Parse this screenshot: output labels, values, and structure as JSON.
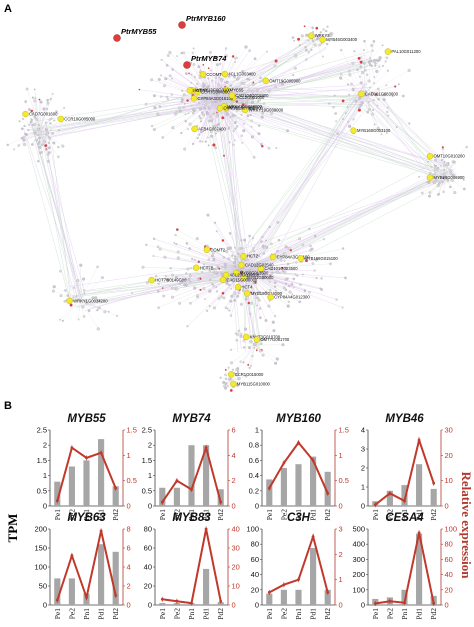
{
  "figure": {
    "panel_a_label": "A",
    "panel_b_label": "B",
    "left_axis_label": "TPM",
    "right_axis_label": "Relative expression"
  },
  "network": {
    "highlight_labels": [
      "PtrMYB160",
      "PtrMYB55",
      "PtrMYB74"
    ],
    "node_labels": [
      "MYB170G000400",
      "CAD101G023500",
      "CAD101G083600",
      "ACL2G001000",
      "MYB1G00000",
      "KNAT3G010700",
      "AFB4G007400",
      "MYB18G014000",
      "CCR10G005000",
      "MYB55",
      "HCT7B",
      "WRKY2",
      "WRKY19G039000",
      "HCT2",
      "CCR1G015000",
      "CYP84A3G016100",
      "HCT4",
      "MYB28G006900",
      "WRKY30G028800",
      "CYP84A3G01100",
      "PAL10G011200",
      "CAD104G016800",
      "CYP84A4G012300",
      "WRKY1G0034200",
      "CCOMT3",
      "MYB168G015100",
      "MYB160G003100",
      "4CL1G003400",
      "MYB6G013500",
      "OMT7G081700",
      "CCR7G004000",
      "HCT7G0149G00",
      "CAD7G001600",
      "OMT10G007000",
      "COMT2",
      "MYB46G003400",
      "WRKY13G0G0100",
      "CAD15G000000",
      "MYB115G010000",
      "OMT19G005900",
      "4CL20G004000",
      "OMT10G010200",
      "HCT7D",
      "CAD12G02540"
    ]
  },
  "chart_data": [
    {
      "type": "bar+line",
      "title": "MYB55",
      "categories": [
        "Pe1",
        "Pe2",
        "Pn1",
        "Pd1",
        "Pd2"
      ],
      "series": [
        {
          "axis": "left",
          "kind": "bar",
          "values": [
            0.8,
            1.3,
            1.5,
            2.2,
            0.65
          ]
        },
        {
          "axis": "right",
          "kind": "line",
          "values": [
            0.1,
            1.15,
            0.95,
            1.05,
            0.35
          ]
        }
      ],
      "left_ticks": [
        "0",
        "0.5",
        "1",
        "1.5",
        "2",
        "2.5"
      ],
      "left_lim": [
        0,
        2.5
      ],
      "right_ticks": [
        "0",
        "0.5",
        "1",
        "1.5"
      ],
      "right_lim": [
        0,
        1.5
      ]
    },
    {
      "type": "bar+line",
      "title": "MYB74",
      "categories": [
        "Pe1",
        "Pe2",
        "Pn1",
        "Pd1",
        "Pd2"
      ],
      "series": [
        {
          "axis": "left",
          "kind": "bar",
          "values": [
            0.6,
            0.6,
            2.0,
            2.0,
            0.55
          ]
        },
        {
          "axis": "right",
          "kind": "line",
          "values": [
            0.3,
            2.0,
            1.3,
            4.6,
            0.3
          ]
        }
      ],
      "left_ticks": [
        "0",
        "0.5",
        "1",
        "1.5",
        "2",
        "2.5"
      ],
      "left_lim": [
        0,
        2.5
      ],
      "right_ticks": [
        "0",
        "2",
        "4",
        "6"
      ],
      "right_lim": [
        0,
        6
      ]
    },
    {
      "type": "bar+line",
      "title": "MYB160",
      "categories": [
        "Pe1",
        "Pe2",
        "Pn1",
        "Pd1",
        "Pd2"
      ],
      "series": [
        {
          "axis": "left",
          "kind": "bar",
          "values": [
            0.35,
            0.5,
            0.55,
            0.65,
            0.45
          ]
        },
        {
          "axis": "right",
          "kind": "line",
          "values": [
            0.35,
            0.85,
            1.25,
            0.9,
            0.25
          ]
        }
      ],
      "left_ticks": [
        "0",
        "0.2",
        "0.4",
        "0.6",
        "0.8",
        "1"
      ],
      "left_lim": [
        0,
        1
      ],
      "right_ticks": [
        "0",
        "0.5",
        "1",
        "1.5"
      ],
      "right_lim": [
        0,
        1.5
      ]
    },
    {
      "type": "bar+line",
      "title": "MYB46",
      "categories": [
        "Pe1",
        "Pe2",
        "Pn1",
        "Pd1",
        "Pd2"
      ],
      "series": [
        {
          "axis": "left",
          "kind": "bar",
          "values": [
            0.25,
            0.8,
            1.1,
            2.2,
            0.9
          ]
        },
        {
          "axis": "right",
          "kind": "line",
          "values": [
            0.5,
            5.0,
            2.0,
            26.0,
            9.0
          ]
        }
      ],
      "left_ticks": [
        "0",
        "1",
        "2",
        "3",
        "4"
      ],
      "left_lim": [
        0,
        4
      ],
      "right_ticks": [
        "0",
        "10",
        "20",
        "30"
      ],
      "right_lim": [
        0,
        30
      ]
    },
    {
      "type": "bar+line",
      "title": "MYB63",
      "categories": [
        "Pe1",
        "Pe2",
        "Pn1",
        "Pd1",
        "Pd2"
      ],
      "series": [
        {
          "axis": "left",
          "kind": "bar",
          "values": [
            70,
            70,
            30,
            160,
            140
          ]
        },
        {
          "axis": "right",
          "kind": "line",
          "values": [
            0.5,
            5.2,
            0.8,
            7.8,
            1.0
          ]
        }
      ],
      "left_ticks": [
        "0",
        "50",
        "100",
        "150",
        "200"
      ],
      "left_lim": [
        0,
        200
      ],
      "right_ticks": [
        "0",
        "2",
        "4",
        "6",
        "8"
      ],
      "right_lim": [
        0,
        8
      ]
    },
    {
      "type": "bar+line",
      "title": "MYB83",
      "categories": [
        "Pe1",
        "Pe2",
        "Pn1",
        "Pd1",
        "Pd2"
      ],
      "series": [
        {
          "axis": "left",
          "kind": "bar",
          "values": [
            2,
            2,
            2,
            38,
            3
          ]
        },
        {
          "axis": "right",
          "kind": "line",
          "values": [
            3,
            2,
            1,
            40,
            2
          ]
        }
      ],
      "left_ticks": [
        "0",
        "20",
        "40",
        "60",
        "80"
      ],
      "left_lim": [
        0,
        80
      ],
      "right_ticks": [
        "0",
        "10",
        "20",
        "30",
        "40"
      ],
      "right_lim": [
        0,
        40
      ]
    },
    {
      "type": "bar+line",
      "title": "C3H",
      "categories": [
        "Pe1",
        "Pe2",
        "Pn1",
        "Pd1",
        "Pd2"
      ],
      "series": [
        {
          "axis": "left",
          "kind": "bar",
          "values": [
            15,
            20,
            20,
            75,
            20
          ]
        },
        {
          "axis": "right",
          "kind": "line",
          "values": [
            0.5,
            0.8,
            1.0,
            2.7,
            0.5
          ]
        }
      ],
      "left_ticks": [
        "0",
        "20",
        "40",
        "60",
        "80",
        "100"
      ],
      "left_lim": [
        0,
        100
      ],
      "right_ticks": [
        "0",
        "1",
        "2",
        "3"
      ],
      "right_lim": [
        0,
        3
      ]
    },
    {
      "type": "bar+line",
      "title": "CESA4",
      "categories": [
        "Pe1",
        "Pe2",
        "Pn1",
        "Pd1",
        "Pd2"
      ],
      "series": [
        {
          "axis": "left",
          "kind": "bar",
          "values": [
            40,
            50,
            100,
            470,
            60
          ]
        },
        {
          "axis": "right",
          "kind": "line",
          "values": [
            2,
            5,
            3,
            95,
            2
          ]
        }
      ],
      "left_ticks": [
        "0",
        "100",
        "200",
        "300",
        "400",
        "500"
      ],
      "left_lim": [
        0,
        500
      ],
      "right_ticks": [
        "0",
        "20",
        "40",
        "60",
        "80",
        "100"
      ],
      "right_lim": [
        0,
        100
      ]
    }
  ]
}
